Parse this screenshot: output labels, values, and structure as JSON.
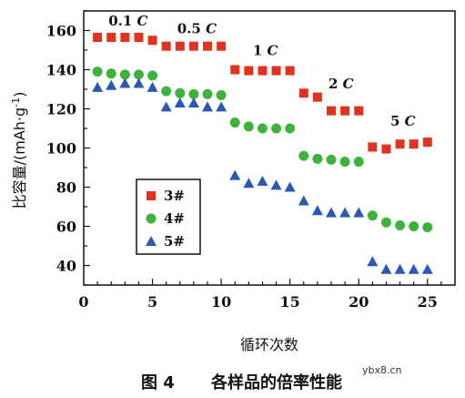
{
  "chart_data": {
    "type": "scatter",
    "title": "",
    "xlabel": "循环次数",
    "ylabel": "比容量/(mAh·g",
    "ylabel_sup": "-1",
    "ylabel_tail": ")",
    "xlim": [
      0,
      27
    ],
    "ylim": [
      30,
      170
    ],
    "xticks": [
      0,
      5,
      10,
      15,
      20,
      25
    ],
    "yticks": [
      40,
      60,
      80,
      100,
      120,
      140,
      160
    ],
    "grid": false,
    "legend_position": "lower-left",
    "series": [
      {
        "name": "3#",
        "marker": "square",
        "color": "#e0321e",
        "x": [
          1,
          2,
          3,
          4,
          5,
          6,
          7,
          8,
          9,
          10,
          11,
          12,
          13,
          14,
          15,
          16,
          17,
          18,
          19,
          20,
          21,
          22,
          23,
          24,
          25
        ],
        "y": [
          156.5,
          156.5,
          156.5,
          156.5,
          155,
          152,
          152,
          152,
          152,
          152,
          140,
          139.5,
          139.5,
          139.5,
          139.5,
          128,
          126,
          119,
          119,
          119,
          100.5,
          99.5,
          102,
          102,
          103
        ]
      },
      {
        "name": "4#",
        "marker": "circle",
        "color": "#3cb43c",
        "x": [
          1,
          2,
          3,
          4,
          5,
          6,
          7,
          8,
          9,
          10,
          11,
          12,
          13,
          14,
          15,
          16,
          17,
          18,
          19,
          20,
          21,
          22,
          23,
          24,
          25
        ],
        "y": [
          139,
          138,
          137.5,
          137.5,
          137,
          129,
          128,
          127.5,
          127.5,
          127,
          113,
          111,
          110,
          110,
          110,
          96,
          94.5,
          94,
          93,
          93,
          65.5,
          62,
          60.5,
          60,
          59.5
        ]
      },
      {
        "name": "5#",
        "marker": "triangle",
        "color": "#2a58b4",
        "x": [
          1,
          2,
          3,
          4,
          5,
          6,
          7,
          8,
          9,
          10,
          11,
          12,
          13,
          14,
          15,
          16,
          17,
          18,
          19,
          20,
          21,
          22,
          23,
          24,
          25
        ],
        "y": [
          131,
          132,
          133,
          133,
          131,
          121,
          123,
          123,
          121,
          121,
          86,
          82,
          83,
          81,
          80,
          73,
          68,
          67,
          67,
          67,
          42,
          38,
          38,
          38,
          38
        ]
      }
    ],
    "annotations": [
      {
        "text": "0.1 ",
        "italic": "C",
        "x": 1.8,
        "y": 162.5
      },
      {
        "text": "0.5 ",
        "italic": "C",
        "x": 6.8,
        "y": 158.5
      },
      {
        "text": "1 ",
        "italic": "C",
        "x": 12.3,
        "y": 147.5
      },
      {
        "text": "2 ",
        "italic": "C",
        "x": 17.8,
        "y": 130.5
      },
      {
        "text": "5 ",
        "italic": "C",
        "x": 22.3,
        "y": 111.5
      }
    ]
  },
  "caption": {
    "figure_label": "图 4",
    "text": "各样品的倍率性能"
  },
  "watermark": "ybx8.cn"
}
